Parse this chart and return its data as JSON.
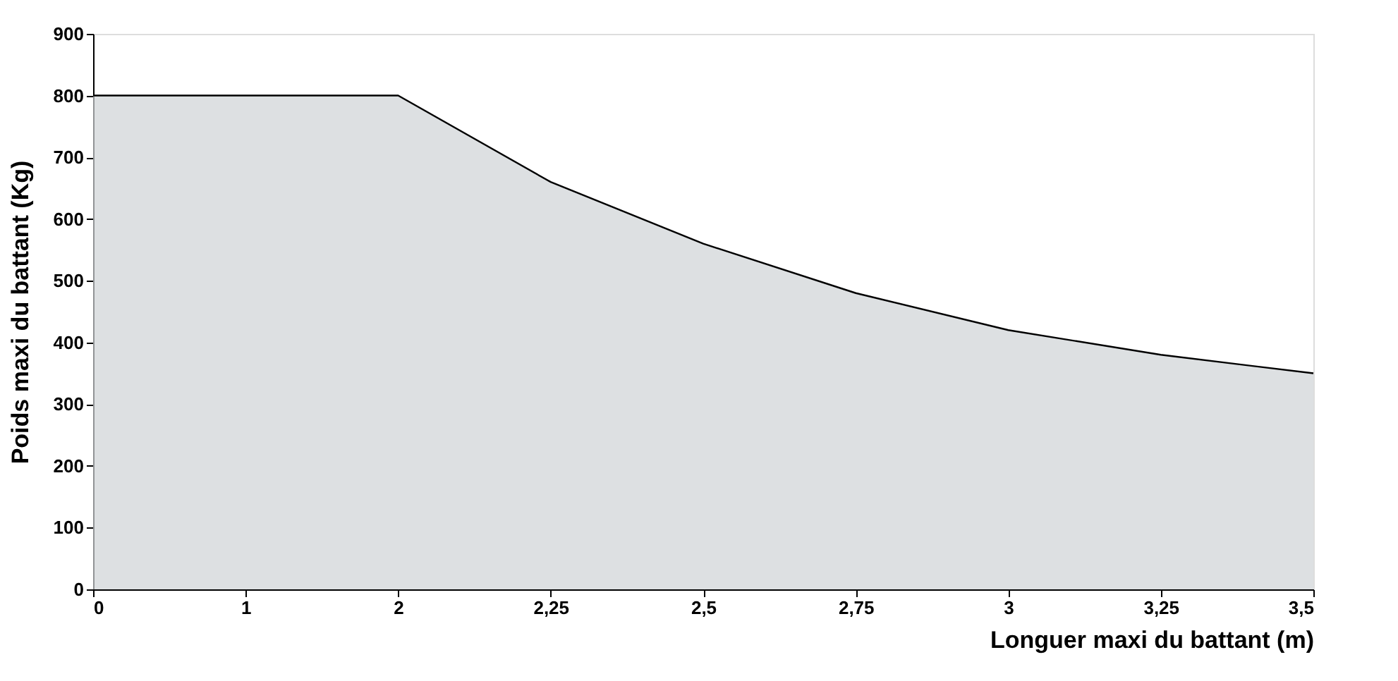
{
  "chart_data": {
    "type": "area",
    "xlabel": "Longuer maxi du battant (m)",
    "ylabel": "Poids maxi du battant (Kg)",
    "categories": [
      "0",
      "1",
      "2",
      "2,25",
      "2,5",
      "2,75",
      "3",
      "3,25",
      "3,5"
    ],
    "series": [
      {
        "color": "#cfd3d6",
        "values": [
          800,
          800,
          800,
          660,
          560,
          480,
          420,
          380,
          350
        ]
      }
    ],
    "ylim": [
      0,
      900
    ],
    "yticks": [
      0,
      100,
      200,
      300,
      400,
      500,
      600,
      700,
      800,
      900
    ],
    "grid": false
  }
}
